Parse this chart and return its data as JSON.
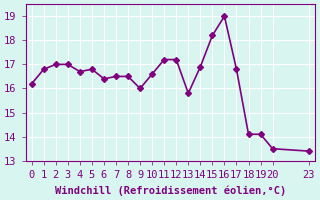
{
  "x": [
    0,
    1,
    2,
    3,
    4,
    5,
    6,
    7,
    8,
    9,
    10,
    11,
    12,
    13,
    14,
    15,
    16,
    17,
    18,
    19,
    20,
    23
  ],
  "y": [
    16.2,
    16.8,
    17.0,
    17.0,
    16.7,
    16.8,
    16.4,
    16.5,
    16.5,
    16.0,
    16.6,
    17.2,
    17.2,
    15.8,
    16.9,
    18.2,
    19.0,
    16.8,
    14.1,
    14.1,
    13.5,
    13.4
  ],
  "line_color": "#800080",
  "marker": "D",
  "marker_size": 3,
  "line_width": 1.2,
  "bg_color": "#d8f5f0",
  "grid_color": "#ffffff",
  "xlabel": "Windchill (Refroidissement éolien,°C)",
  "xlabel_color": "#800080",
  "tick_color": "#800080",
  "ylim": [
    13,
    19.5
  ],
  "xlim": [
    -0.5,
    23.5
  ],
  "yticks": [
    13,
    14,
    15,
    16,
    17,
    18,
    19
  ],
  "xticks": [
    0,
    1,
    2,
    3,
    4,
    5,
    6,
    7,
    8,
    9,
    10,
    11,
    12,
    13,
    14,
    15,
    16,
    17,
    18,
    19,
    20,
    23
  ],
  "xtick_labels": [
    "0",
    "1",
    "2",
    "3",
    "4",
    "5",
    "6",
    "7",
    "8",
    "9",
    "10",
    "11",
    "12",
    "13",
    "14",
    "15",
    "16",
    "17",
    "18",
    "19",
    "20",
    "23"
  ],
  "font_size": 7.5,
  "label_font_size": 7.5
}
